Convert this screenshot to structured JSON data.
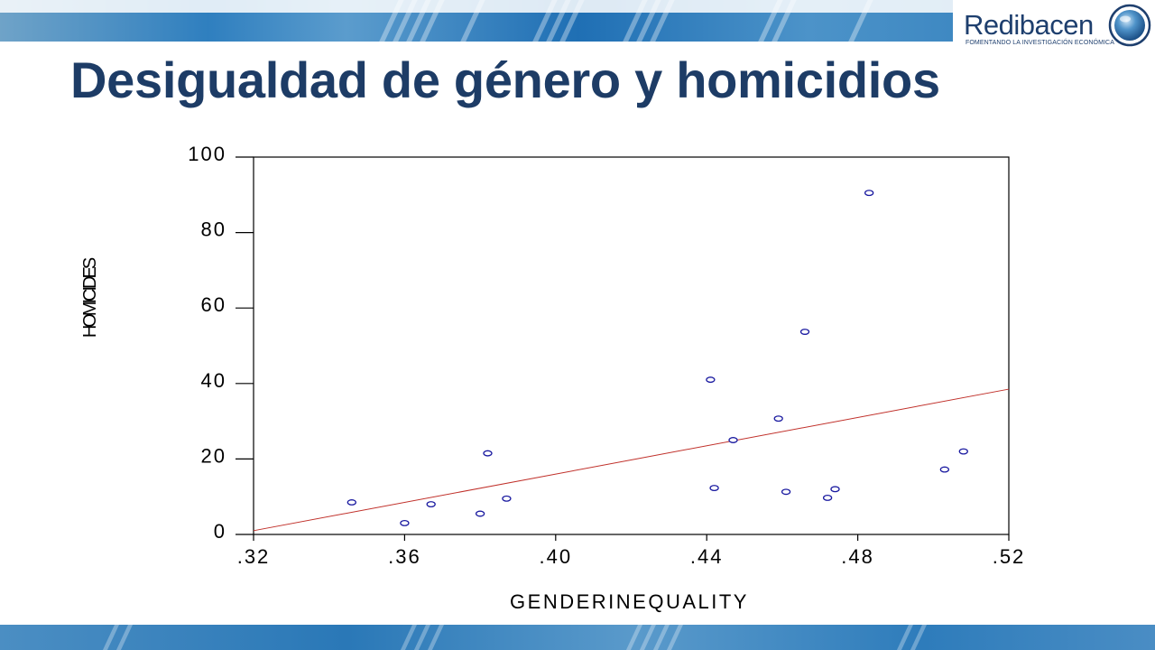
{
  "slide": {
    "title": "Desigualdad de género y homicidios"
  },
  "logo": {
    "name": "Redibacen",
    "tagline": "FOMENTANDO LA INVESTIGACIÓN ECONÓMICA"
  },
  "colors": {
    "title": "#1d3c66",
    "marker": "#1a1aa0",
    "fit_line": "#c0302a",
    "axis": "#000000"
  },
  "chart_data": {
    "type": "scatter",
    "xlabel": "GENDERINEQUALITY",
    "ylabel": "HOMICIDES",
    "xlim": [
      0.32,
      0.52
    ],
    "ylim": [
      0,
      100
    ],
    "x_ticks": [
      {
        "value": 0.32,
        "label": ".32"
      },
      {
        "value": 0.36,
        "label": ".36"
      },
      {
        "value": 0.4,
        "label": ".40"
      },
      {
        "value": 0.44,
        "label": ".44"
      },
      {
        "value": 0.48,
        "label": ".48"
      },
      {
        "value": 0.52,
        "label": ".52"
      }
    ],
    "y_ticks": [
      {
        "value": 0,
        "label": "0"
      },
      {
        "value": 20,
        "label": "20"
      },
      {
        "value": 40,
        "label": "40"
      },
      {
        "value": 60,
        "label": "60"
      },
      {
        "value": 80,
        "label": "80"
      },
      {
        "value": 100,
        "label": "100"
      }
    ],
    "points": [
      {
        "x": 0.346,
        "y": 8.5
      },
      {
        "x": 0.36,
        "y": 3.0
      },
      {
        "x": 0.367,
        "y": 8.0
      },
      {
        "x": 0.38,
        "y": 5.5
      },
      {
        "x": 0.382,
        "y": 21.5
      },
      {
        "x": 0.387,
        "y": 9.5
      },
      {
        "x": 0.441,
        "y": 41.0
      },
      {
        "x": 0.442,
        "y": 12.3
      },
      {
        "x": 0.447,
        "y": 25.0
      },
      {
        "x": 0.459,
        "y": 30.7
      },
      {
        "x": 0.461,
        "y": 11.3
      },
      {
        "x": 0.466,
        "y": 53.7
      },
      {
        "x": 0.472,
        "y": 9.7
      },
      {
        "x": 0.474,
        "y": 12.0
      },
      {
        "x": 0.483,
        "y": 90.5
      },
      {
        "x": 0.503,
        "y": 17.2
      },
      {
        "x": 0.508,
        "y": 22.0
      }
    ],
    "fit_line": {
      "x": [
        0.32,
        0.52
      ],
      "y": [
        1.0,
        38.5
      ]
    },
    "grid": false
  }
}
